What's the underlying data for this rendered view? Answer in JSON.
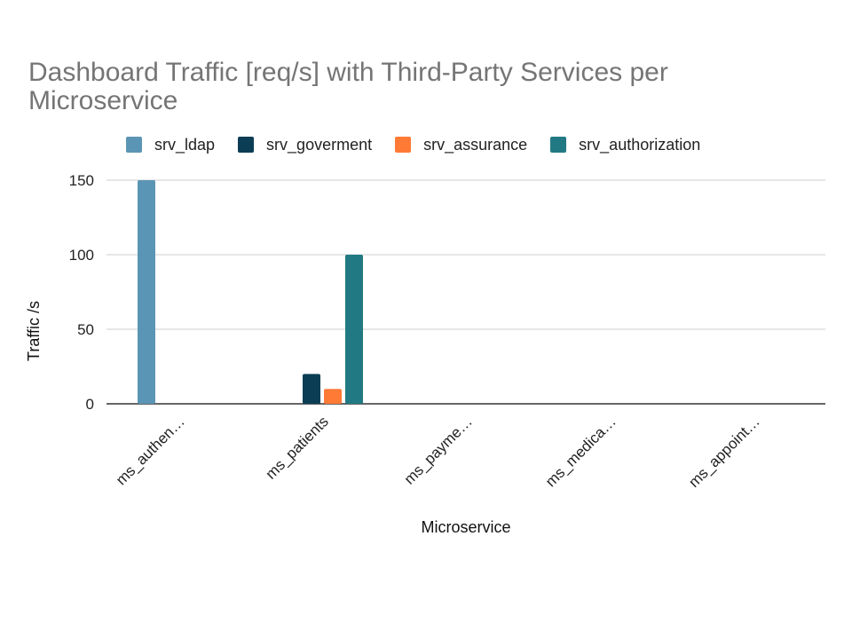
{
  "chart_data": {
    "type": "bar",
    "title": "Dashboard Traffic [req/s] with Third-Party Services per Microservice",
    "xlabel": "Microservice",
    "ylabel": "Traffic /s",
    "categories": [
      "ms_authen…",
      "ms_patients",
      "ms_payme…",
      "ms_medica…",
      "ms_appoint…"
    ],
    "series": [
      {
        "name": "srv_ldap",
        "color": "#5b95b5",
        "values": [
          150,
          0,
          0,
          0,
          0
        ]
      },
      {
        "name": "srv_goverment",
        "color": "#0b3d55",
        "values": [
          0,
          20,
          0,
          0,
          0
        ]
      },
      {
        "name": "srv_assurance",
        "color": "#ff7a35",
        "values": [
          0,
          10,
          0,
          0,
          0
        ]
      },
      {
        "name": "srv_authorization",
        "color": "#217a83",
        "values": [
          0,
          100,
          0,
          0,
          0
        ]
      }
    ],
    "ylim": [
      0,
      150
    ],
    "yticks": [
      0,
      50,
      100,
      150
    ],
    "grid": true,
    "legend_position": "top"
  }
}
